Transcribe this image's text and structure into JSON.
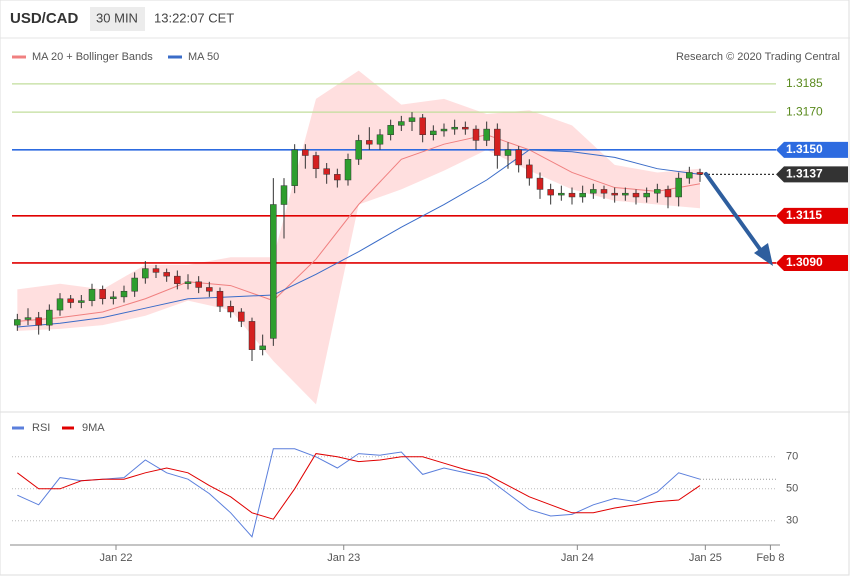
{
  "header": {
    "symbol": "USD/CAD",
    "interval": "30 MIN",
    "time": "13:22:07 CET"
  },
  "credit": "Research © 2020 Trading Central",
  "chart_data": [
    {
      "type": "candlestick",
      "xlim": [
        -0.5,
        71.5
      ],
      "ylim": [
        1.3012,
        1.3195
      ],
      "up_color": "#2e9e2e",
      "down_color": "#d42020",
      "candles": [
        [
          1.3057,
          1.3063,
          1.3054,
          1.306
        ],
        [
          1.306,
          1.3066,
          1.3057,
          1.3061
        ],
        [
          1.3061,
          1.3064,
          1.3052,
          1.3057
        ],
        [
          1.3057,
          1.3068,
          1.3054,
          1.3065
        ],
        [
          1.3065,
          1.3074,
          1.3062,
          1.3071
        ],
        [
          1.3071,
          1.3073,
          1.3066,
          1.3069
        ],
        [
          1.3069,
          1.3073,
          1.3066,
          1.307
        ],
        [
          1.307,
          1.3079,
          1.3067,
          1.3076
        ],
        [
          1.3076,
          1.3078,
          1.3068,
          1.3071
        ],
        [
          1.3071,
          1.3075,
          1.3068,
          1.3072
        ],
        [
          1.3072,
          1.3078,
          1.3069,
          1.3075
        ],
        [
          1.3075,
          1.3085,
          1.3072,
          1.3082
        ],
        [
          1.3082,
          1.3091,
          1.3079,
          1.3087
        ],
        [
          1.3087,
          1.3089,
          1.3082,
          1.3085
        ],
        [
          1.3085,
          1.3087,
          1.308,
          1.3083
        ],
        [
          1.3083,
          1.3086,
          1.3076,
          1.3079
        ],
        [
          1.3079,
          1.3084,
          1.3076,
          1.308
        ],
        [
          1.308,
          1.3083,
          1.3074,
          1.3077
        ],
        [
          1.3077,
          1.308,
          1.3072,
          1.3075
        ],
        [
          1.3075,
          1.3077,
          1.3064,
          1.3067
        ],
        [
          1.3067,
          1.307,
          1.3061,
          1.3064
        ],
        [
          1.3064,
          1.3066,
          1.3056,
          1.3059
        ],
        [
          1.3059,
          1.3061,
          1.3038,
          1.3044
        ],
        [
          1.3044,
          1.3052,
          1.3041,
          1.3046
        ],
        [
          1.305,
          1.3135,
          1.3046,
          1.3121
        ],
        [
          1.3121,
          1.3135,
          1.3103,
          1.3131
        ],
        [
          1.3131,
          1.3153,
          1.3127,
          1.315
        ],
        [
          1.315,
          1.3153,
          1.314,
          1.3147
        ],
        [
          1.3147,
          1.3149,
          1.3135,
          1.314
        ],
        [
          1.314,
          1.3143,
          1.3132,
          1.3137
        ],
        [
          1.3137,
          1.314,
          1.313,
          1.3134
        ],
        [
          1.3134,
          1.3148,
          1.3131,
          1.3145
        ],
        [
          1.3145,
          1.3158,
          1.3142,
          1.3155
        ],
        [
          1.3155,
          1.3162,
          1.315,
          1.3153
        ],
        [
          1.3153,
          1.3161,
          1.315,
          1.3158
        ],
        [
          1.3158,
          1.3166,
          1.3155,
          1.3163
        ],
        [
          1.3163,
          1.3168,
          1.316,
          1.3165
        ],
        [
          1.3165,
          1.317,
          1.316,
          1.3167
        ],
        [
          1.3167,
          1.3169,
          1.3154,
          1.3158
        ],
        [
          1.3158,
          1.3163,
          1.3155,
          1.316
        ],
        [
          1.316,
          1.3164,
          1.3157,
          1.3161
        ],
        [
          1.3161,
          1.3166,
          1.3158,
          1.3162
        ],
        [
          1.3162,
          1.3165,
          1.3158,
          1.3161
        ],
        [
          1.3161,
          1.3163,
          1.315,
          1.3155
        ],
        [
          1.3155,
          1.3165,
          1.3152,
          1.3161
        ],
        [
          1.3161,
          1.3164,
          1.314,
          1.3147
        ],
        [
          1.3147,
          1.3154,
          1.314,
          1.315
        ],
        [
          1.315,
          1.3152,
          1.3138,
          1.3142
        ],
        [
          1.3142,
          1.3145,
          1.3131,
          1.3135
        ],
        [
          1.3135,
          1.3138,
          1.3124,
          1.3129
        ],
        [
          1.3129,
          1.3132,
          1.3121,
          1.3126
        ],
        [
          1.3126,
          1.3131,
          1.3123,
          1.3127
        ],
        [
          1.3127,
          1.313,
          1.3121,
          1.3125
        ],
        [
          1.3125,
          1.3131,
          1.3122,
          1.3127
        ],
        [
          1.3127,
          1.3132,
          1.3124,
          1.3129
        ],
        [
          1.3129,
          1.3131,
          1.3124,
          1.3127
        ],
        [
          1.3127,
          1.313,
          1.3122,
          1.3126
        ],
        [
          1.3126,
          1.313,
          1.3123,
          1.3127
        ],
        [
          1.3127,
          1.3129,
          1.3121,
          1.3125
        ],
        [
          1.3125,
          1.313,
          1.3122,
          1.3127
        ],
        [
          1.3127,
          1.3132,
          1.3122,
          1.3129
        ],
        [
          1.3129,
          1.3131,
          1.3119,
          1.3125
        ],
        [
          1.3125,
          1.3138,
          1.312,
          1.3135
        ],
        [
          1.3135,
          1.3141,
          1.3132,
          1.3138
        ],
        [
          1.3138,
          1.314,
          1.3133,
          1.3137
        ]
      ],
      "series": [
        {
          "name": "MA 20 + Bollinger Bands",
          "color": "#f08080",
          "band_color": "rgba(255,140,140,0.28)",
          "x": [
            0,
            4,
            8,
            12,
            16,
            20,
            24,
            28,
            32,
            36,
            40,
            44,
            48,
            52,
            56,
            60,
            64
          ],
          "values": [
            1.3059,
            1.3061,
            1.3064,
            1.3071,
            1.308,
            1.3078,
            1.307,
            1.3092,
            1.3121,
            1.3145,
            1.3153,
            1.3158,
            1.315,
            1.3138,
            1.313,
            1.3128,
            1.3132
          ],
          "upper": [
            1.3076,
            1.3079,
            1.3076,
            1.3089,
            1.3089,
            1.3093,
            1.3093,
            1.3177,
            1.3192,
            1.3174,
            1.3177,
            1.3169,
            1.3171,
            1.3163,
            1.3142,
            1.3138,
            1.314
          ],
          "lower": [
            1.3054,
            1.3055,
            1.3057,
            1.3062,
            1.307,
            1.3065,
            1.3038,
            1.3015,
            1.3121,
            1.3129,
            1.3139,
            1.315,
            1.3139,
            1.3129,
            1.3123,
            1.3121,
            1.3119
          ]
        },
        {
          "name": "MA 50",
          "color": "#3a6cc8",
          "x": [
            0,
            4,
            8,
            12,
            16,
            20,
            24,
            28,
            32,
            36,
            40,
            44,
            48,
            52,
            56,
            60,
            64
          ],
          "values": [
            1.3056,
            1.3058,
            1.3061,
            1.3066,
            1.3071,
            1.3072,
            1.3073,
            1.3084,
            1.3096,
            1.3109,
            1.3121,
            1.3134,
            1.315,
            1.3149,
            1.3146,
            1.314,
            1.3137
          ]
        }
      ],
      "levels": [
        {
          "value": 1.3185,
          "label": "1.3185",
          "color": "#c2de9c",
          "text_color": "#5a8a1e",
          "label_style": "plain"
        },
        {
          "value": 1.317,
          "label": "1.3170",
          "color": "#c2de9c",
          "text_color": "#5a8a1e",
          "label_style": "plain"
        },
        {
          "value": 1.315,
          "label": "1.3150",
          "color": "#2d6be0",
          "text_color": "#ffffff",
          "label_style": "pill"
        },
        {
          "value": 1.3137,
          "label": "1.3137",
          "color": "#333333",
          "text_color": "#ffffff",
          "label_style": "pill",
          "dash": true
        },
        {
          "value": 1.3115,
          "label": "1.3115",
          "color": "#e00000",
          "text_color": "#ffffff",
          "label_style": "pill"
        },
        {
          "value": 1.309,
          "label": "1.3090",
          "color": "#e00000",
          "text_color": "#ffffff",
          "label_style": "pill"
        }
      ]
    },
    {
      "type": "line",
      "xlim": [
        -0.5,
        71.5
      ],
      "ylim": [
        18,
        93
      ],
      "yticks": [
        70,
        50,
        30
      ],
      "xticks": [
        {
          "value": 9.25,
          "label": "Jan 22"
        },
        {
          "value": 30.6,
          "label": "Jan 23"
        },
        {
          "value": 52.5,
          "label": "Jan 24"
        },
        {
          "value": 64.5,
          "label": "Jan 25"
        },
        {
          "value": 70.6,
          "label": "Feb 8"
        }
      ],
      "series": [
        {
          "name": "RSI",
          "color": "#5b7fdc",
          "x": [
            0,
            2,
            4,
            6,
            8,
            10,
            12,
            14,
            16,
            18,
            20,
            22,
            24,
            26,
            28,
            30,
            32,
            34,
            36,
            38,
            40,
            42,
            44,
            46,
            48,
            50,
            52,
            54,
            56,
            58,
            60,
            62,
            64
          ],
          "values": [
            46,
            40,
            57,
            55,
            56,
            57,
            68,
            60,
            56,
            47,
            35,
            20,
            75,
            75,
            70,
            63,
            72,
            71,
            73,
            59,
            63,
            60,
            57,
            47,
            37,
            33,
            34,
            40,
            44,
            42,
            48,
            60,
            56
          ]
        },
        {
          "name": "9MA",
          "color": "#e00000",
          "x": [
            0,
            2,
            4,
            6,
            8,
            10,
            12,
            14,
            16,
            18,
            20,
            22,
            24,
            26,
            28,
            30,
            32,
            34,
            36,
            38,
            40,
            42,
            44,
            46,
            48,
            50,
            52,
            54,
            56,
            58,
            60,
            62,
            64
          ],
          "values": [
            60,
            50,
            50,
            55,
            56,
            56,
            60,
            63,
            60,
            52,
            45,
            35,
            31,
            50,
            72,
            70,
            67,
            68,
            70,
            70,
            66,
            62,
            59,
            52,
            45,
            40,
            35,
            35,
            38,
            40,
            42,
            43,
            52
          ]
        }
      ]
    }
  ]
}
